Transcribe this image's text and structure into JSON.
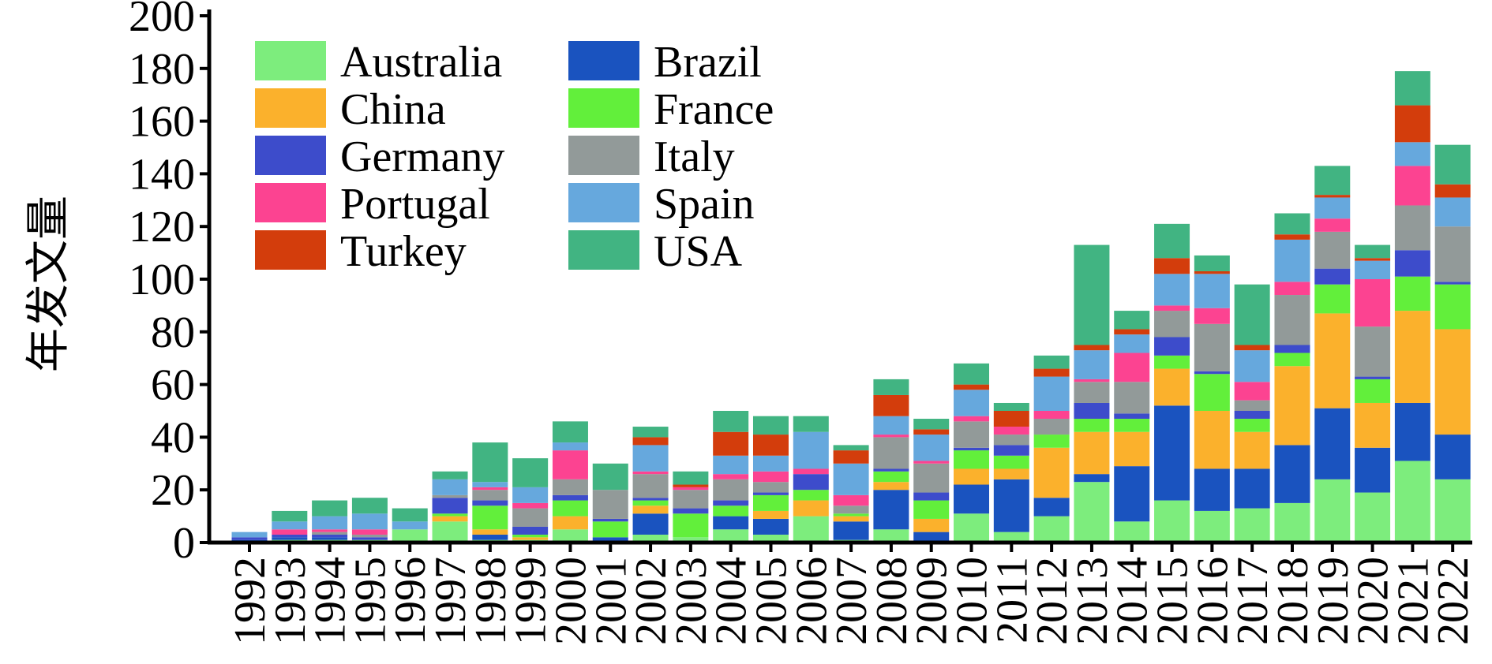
{
  "chart_data": {
    "type": "bar",
    "stacked": true,
    "title": "",
    "xlabel": "",
    "ylabel": "年发文量",
    "ylim": [
      0,
      200
    ],
    "yticks": [
      0,
      20,
      40,
      60,
      80,
      100,
      120,
      140,
      160,
      180,
      200
    ],
    "grid": false,
    "legend_position": "top-left",
    "categories": [
      "1992",
      "1993",
      "1994",
      "1995",
      "1996",
      "1997",
      "1998",
      "1999",
      "2000",
      "2001",
      "2002",
      "2003",
      "2004",
      "2005",
      "2006",
      "2007",
      "2008",
      "2009",
      "2010",
      "2011",
      "2012",
      "2013",
      "2014",
      "2015",
      "2016",
      "2017",
      "2018",
      "2019",
      "2020",
      "2021",
      "2022"
    ],
    "series": [
      {
        "name": "Australia",
        "color": "#7ded7d",
        "values": [
          0,
          1,
          1,
          1,
          5,
          8,
          1,
          1,
          5,
          0,
          3,
          2,
          5,
          3,
          10,
          1,
          5,
          0,
          11,
          4,
          10,
          23,
          8,
          16,
          12,
          13,
          15,
          24,
          19,
          31,
          24
        ]
      },
      {
        "name": "Brazil",
        "color": "#1a53bf",
        "values": [
          1,
          1,
          1,
          0,
          0,
          0,
          2,
          0,
          0,
          2,
          8,
          0,
          5,
          6,
          0,
          7,
          15,
          4,
          11,
          20,
          7,
          3,
          21,
          36,
          16,
          15,
          22,
          27,
          17,
          22,
          17
        ]
      },
      {
        "name": "China",
        "color": "#fbb12c",
        "values": [
          0,
          0,
          0,
          0,
          0,
          2,
          2,
          1,
          5,
          0,
          3,
          0,
          0,
          3,
          6,
          2,
          3,
          5,
          6,
          4,
          19,
          16,
          13,
          14,
          22,
          14,
          30,
          36,
          17,
          35,
          40
        ]
      },
      {
        "name": "France",
        "color": "#62ef3b",
        "values": [
          0,
          0,
          0,
          0,
          0,
          1,
          9,
          1,
          6,
          6,
          2,
          9,
          4,
          6,
          4,
          1,
          4,
          7,
          7,
          5,
          5,
          5,
          5,
          5,
          14,
          5,
          5,
          11,
          9,
          13,
          17
        ]
      },
      {
        "name": "Germany",
        "color": "#3d4ccb",
        "values": [
          1,
          1,
          1,
          1,
          0,
          6,
          2,
          3,
          2,
          1,
          1,
          2,
          2,
          1,
          6,
          0,
          1,
          3,
          1,
          4,
          0,
          6,
          2,
          7,
          1,
          3,
          3,
          6,
          1,
          10,
          1
        ]
      },
      {
        "name": "Italy",
        "color": "#929a99",
        "values": [
          0,
          0,
          1,
          1,
          0,
          1,
          4,
          7,
          6,
          11,
          9,
          7,
          8,
          4,
          0,
          3,
          12,
          11,
          10,
          4,
          6,
          8,
          12,
          10,
          18,
          4,
          19,
          14,
          19,
          17,
          21
        ]
      },
      {
        "name": "Portugal",
        "color": "#fc4391",
        "values": [
          0,
          2,
          1,
          2,
          0,
          0,
          1,
          2,
          11,
          0,
          1,
          1,
          2,
          4,
          2,
          4,
          1,
          1,
          2,
          3,
          3,
          1,
          11,
          2,
          6,
          7,
          5,
          5,
          18,
          15,
          0
        ]
      },
      {
        "name": "Spain",
        "color": "#66a8dd",
        "values": [
          2,
          3,
          5,
          6,
          3,
          6,
          2,
          6,
          3,
          0,
          10,
          0,
          7,
          6,
          14,
          12,
          7,
          10,
          10,
          0,
          13,
          11,
          7,
          12,
          13,
          12,
          16,
          8,
          7,
          9,
          11
        ]
      },
      {
        "name": "Turkey",
        "color": "#d33d0c",
        "values": [
          0,
          0,
          0,
          0,
          0,
          0,
          0,
          0,
          0,
          0,
          3,
          1,
          9,
          8,
          0,
          5,
          8,
          2,
          2,
          6,
          3,
          2,
          2,
          6,
          1,
          2,
          2,
          1,
          1,
          14,
          5
        ]
      },
      {
        "name": "USA",
        "color": "#41b482",
        "values": [
          0,
          4,
          6,
          6,
          5,
          3,
          15,
          11,
          8,
          10,
          4,
          5,
          8,
          7,
          6,
          2,
          6,
          4,
          8,
          3,
          5,
          38,
          7,
          13,
          6,
          23,
          8,
          11,
          5,
          13,
          15
        ]
      }
    ]
  }
}
